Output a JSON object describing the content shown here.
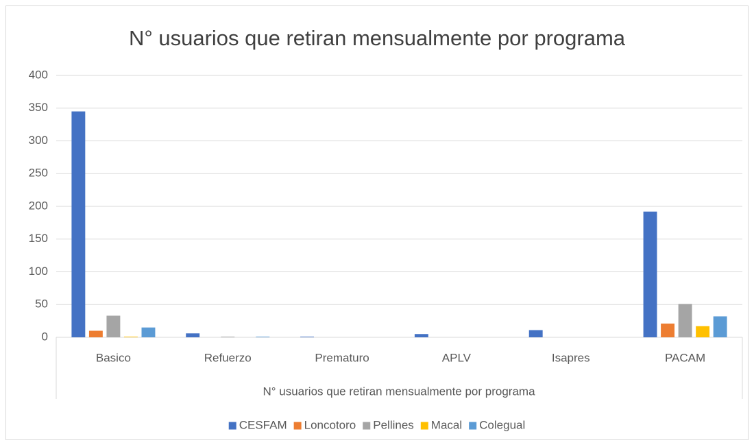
{
  "chart_data": {
    "type": "bar",
    "title": "N° usuarios que retiran mensualmente por programa",
    "xlabel": "N° usuarios que retiran mensualmente por programa",
    "categories": [
      "Basico",
      "Refuerzo",
      "Prematuro",
      "APLV",
      "Isapres",
      "PACAM"
    ],
    "series": [
      {
        "name": "CESFAM",
        "color": "#4472c4",
        "values": [
          345,
          6,
          1,
          5,
          11,
          192
        ]
      },
      {
        "name": "Loncotoro",
        "color": "#ed7d31",
        "values": [
          10,
          0,
          0,
          0,
          0,
          21
        ]
      },
      {
        "name": "Pellines",
        "color": "#a5a5a5",
        "values": [
          33,
          1,
          0,
          0,
          0,
          51
        ]
      },
      {
        "name": "Macal",
        "color": "#ffc000",
        "values": [
          1,
          0,
          0,
          0,
          0,
          17
        ]
      },
      {
        "name": "Colegual",
        "color": "#5b9bd5",
        "values": [
          15,
          1,
          0,
          0,
          0,
          32
        ]
      }
    ],
    "ylim": [
      0,
      400
    ],
    "yticks": [
      0,
      50,
      100,
      150,
      200,
      250,
      300,
      350,
      400
    ],
    "grid": true,
    "legend": "bottom"
  }
}
